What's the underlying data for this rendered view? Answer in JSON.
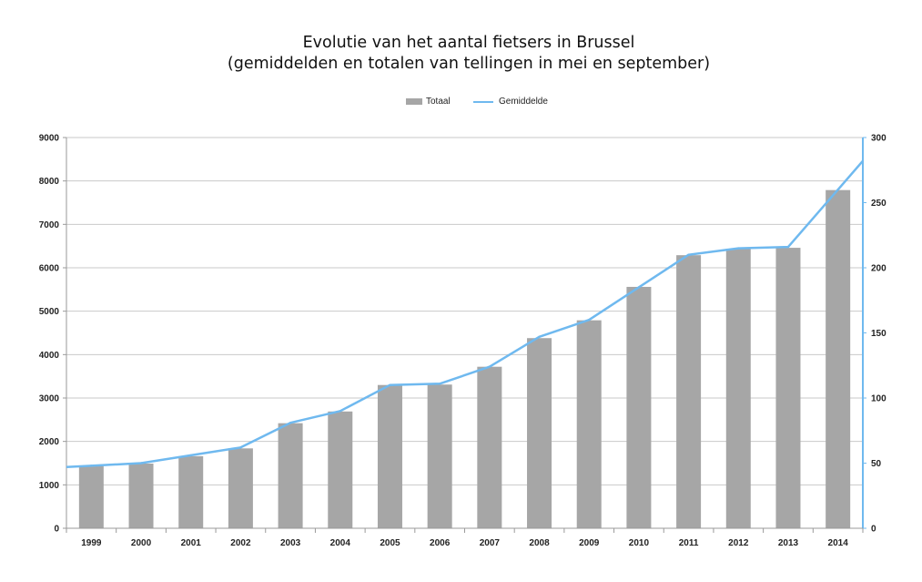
{
  "chart_data": {
    "type": "bar",
    "title_lines": [
      "Evolutie van het aantal fietsers in Brussel",
      "(gemiddelden en totalen van tellingen in mei en september)"
    ],
    "categories": [
      "1999",
      "2000",
      "2001",
      "2002",
      "2003",
      "2004",
      "2005",
      "2006",
      "2007",
      "2008",
      "2009",
      "2010",
      "2011",
      "2012",
      "2013",
      "2014"
    ],
    "series": [
      {
        "name": "Totaal",
        "type": "bar",
        "axis": "left",
        "color": "#a6a6a6",
        "values": [
          1430,
          1490,
          1660,
          1840,
          2420,
          2690,
          3300,
          3310,
          3720,
          4380,
          4790,
          5560,
          6290,
          6440,
          6460,
          7790
        ]
      },
      {
        "name": "Gemiddelde",
        "type": "line",
        "axis": "right",
        "color": "#6fb9ef",
        "values": [
          48,
          50,
          56,
          62,
          81,
          90,
          110,
          111,
          124,
          147,
          160,
          185,
          210,
          215,
          216,
          260
        ]
      }
    ],
    "y_left": {
      "min": 0,
      "max": 9000,
      "ticks": [
        "0",
        "1000",
        "2000",
        "3000",
        "4000",
        "5000",
        "6000",
        "7000",
        "8000",
        "9000"
      ]
    },
    "y_right": {
      "min": 0,
      "max": 300,
      "ticks": [
        "0",
        "50",
        "100",
        "150",
        "200",
        "250",
        "300"
      ]
    },
    "grid": true,
    "legend_position": "top-center",
    "xlabel": "",
    "ylabel": ""
  }
}
